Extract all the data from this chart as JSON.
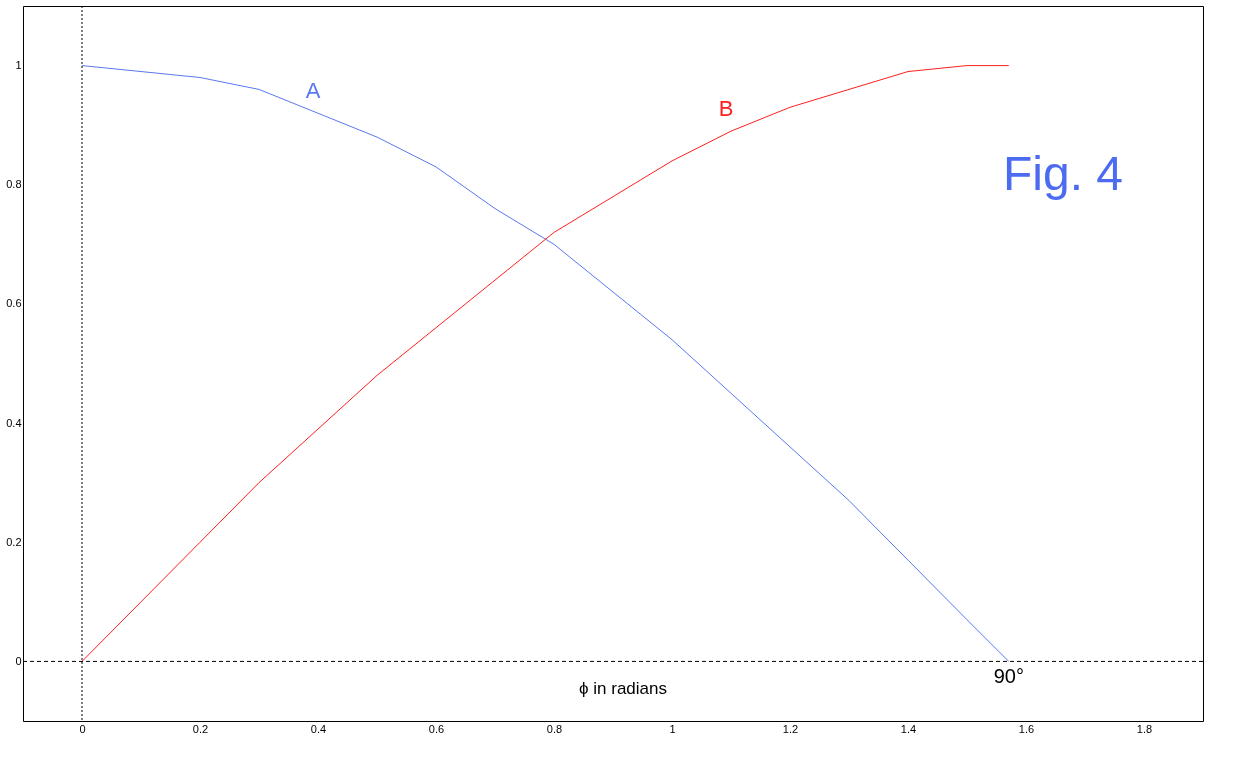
{
  "chart_data": {
    "type": "line",
    "xlabel": "ϕ  in radians",
    "x": [
      0,
      0.1,
      0.2,
      0.3,
      0.4,
      0.5,
      0.6,
      0.7,
      0.8,
      0.9,
      1.0,
      1.1,
      1.2,
      1.3,
      1.4,
      1.5,
      1.5708
    ],
    "series": [
      {
        "name": "A",
        "color": "#5a78f0",
        "values": [
          1.0,
          0.99,
          0.98,
          0.96,
          0.92,
          0.88,
          0.83,
          0.76,
          0.7,
          0.62,
          0.54,
          0.45,
          0.36,
          0.27,
          0.17,
          0.07,
          0.0
        ]
      },
      {
        "name": "B",
        "color": "#ff2020",
        "values": [
          0.0,
          0.1,
          0.2,
          0.3,
          0.39,
          0.48,
          0.56,
          0.64,
          0.72,
          0.78,
          0.84,
          0.89,
          0.93,
          0.96,
          0.99,
          1.0,
          1.0
        ]
      }
    ],
    "xlim": [
      -0.1,
      1.9
    ],
    "ylim": [
      -0.1,
      1.1
    ],
    "xticks": [
      0,
      0.2,
      0.4,
      0.6,
      0.8,
      1,
      1.2,
      1.4,
      1.6,
      1.8
    ],
    "yticks": [
      0,
      0.2,
      0.4,
      0.6,
      0.8,
      1
    ],
    "ref_lines": [
      {
        "axis": "x",
        "value": 0,
        "color": "#000000",
        "line_style": "dotted"
      },
      {
        "axis": "y",
        "value": 0,
        "color": "#000000",
        "line_style": "dashed"
      }
    ],
    "annotations": [
      "Fig. 4",
      {
        "text": "90°",
        "x": 1.5708,
        "y": 0
      }
    ],
    "grid": false,
    "legend": false,
    "marker": "none",
    "line_style": "solid"
  }
}
